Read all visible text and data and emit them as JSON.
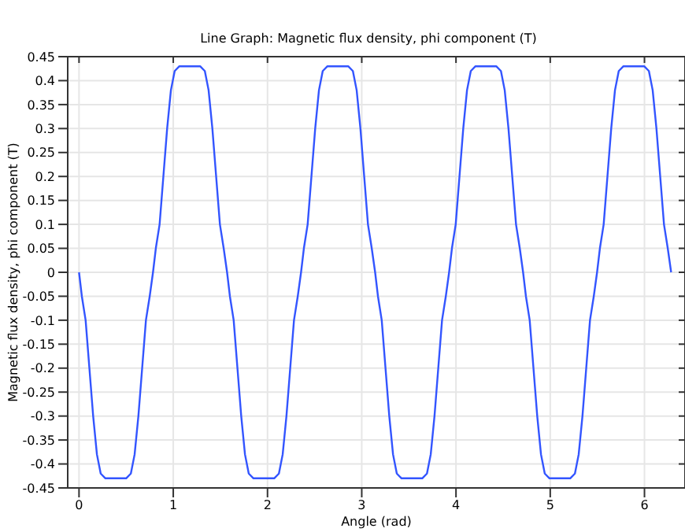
{
  "chart_data": {
    "type": "line",
    "title": "Line Graph: Magnetic flux density, phi component (T)",
    "xlabel": "Angle (rad)",
    "ylabel": "Magnetic flux density, phi component (T)",
    "xlim": [
      -0.12,
      6.43
    ],
    "xticks": [
      0,
      1,
      2,
      3,
      4,
      5,
      6
    ],
    "ylim": [
      -0.45,
      0.45
    ],
    "yticks": [
      -0.45,
      -0.4,
      -0.35,
      -0.3,
      -0.25,
      -0.2,
      -0.15,
      -0.1,
      -0.05,
      0,
      0.05,
      0.1,
      0.15,
      0.2,
      0.25,
      0.3,
      0.35,
      0.4,
      0.45
    ],
    "grid": true,
    "line_style": "solid",
    "x": [
      0,
      0.03,
      0.07,
      0.11,
      0.15,
      0.19,
      0.23,
      0.28,
      0.5,
      0.55,
      0.59,
      0.63,
      0.67,
      0.71,
      0.75,
      0.785,
      0.815,
      0.855,
      0.895,
      0.935,
      0.975,
      1.015,
      1.065,
      1.285,
      1.335,
      1.375,
      1.415,
      1.455,
      1.495,
      1.535,
      1.571,
      1.601,
      1.641,
      1.681,
      1.721,
      1.761,
      1.801,
      1.851,
      2.071,
      2.121,
      2.161,
      2.201,
      2.241,
      2.281,
      2.321,
      2.356,
      2.386,
      2.426,
      2.466,
      2.506,
      2.546,
      2.586,
      2.636,
      2.856,
      2.906,
      2.946,
      2.986,
      3.026,
      3.066,
      3.106,
      3.142,
      3.172,
      3.212,
      3.252,
      3.292,
      3.332,
      3.372,
      3.422,
      3.642,
      3.692,
      3.732,
      3.772,
      3.812,
      3.852,
      3.892,
      3.927,
      3.957,
      3.997,
      4.037,
      4.077,
      4.117,
      4.157,
      4.207,
      4.427,
      4.477,
      4.517,
      4.557,
      4.597,
      4.637,
      4.677,
      4.712,
      4.742,
      4.782,
      4.822,
      4.862,
      4.902,
      4.942,
      4.992,
      5.212,
      5.262,
      5.302,
      5.342,
      5.382,
      5.422,
      5.462,
      5.497,
      5.527,
      5.567,
      5.607,
      5.647,
      5.687,
      5.727,
      5.777,
      5.997,
      6.047,
      6.087,
      6.127,
      6.167,
      6.207,
      6.247,
      6.283
    ],
    "series": [
      {
        "color": "#3355ff",
        "values": [
          0,
          -0.05,
          -0.1,
          -0.2,
          -0.3,
          -0.38,
          -0.42,
          -0.43,
          -0.43,
          -0.42,
          -0.38,
          -0.3,
          -0.2,
          -0.1,
          -0.05,
          0,
          0.05,
          0.1,
          0.2,
          0.3,
          0.38,
          0.42,
          0.43,
          0.43,
          0.42,
          0.38,
          0.3,
          0.2,
          0.1,
          0.05,
          0,
          -0.05,
          -0.1,
          -0.2,
          -0.3,
          -0.38,
          -0.42,
          -0.43,
          -0.43,
          -0.42,
          -0.38,
          -0.3,
          -0.2,
          -0.1,
          -0.05,
          0,
          0.05,
          0.1,
          0.2,
          0.3,
          0.38,
          0.42,
          0.43,
          0.43,
          0.42,
          0.38,
          0.3,
          0.2,
          0.1,
          0.05,
          0,
          -0.05,
          -0.1,
          -0.2,
          -0.3,
          -0.38,
          -0.42,
          -0.43,
          -0.43,
          -0.42,
          -0.38,
          -0.3,
          -0.2,
          -0.1,
          -0.05,
          0,
          0.05,
          0.1,
          0.2,
          0.3,
          0.38,
          0.42,
          0.43,
          0.43,
          0.42,
          0.38,
          0.3,
          0.2,
          0.1,
          0.05,
          0,
          -0.05,
          -0.1,
          -0.2,
          -0.3,
          -0.38,
          -0.42,
          -0.43,
          -0.43,
          -0.42,
          -0.38,
          -0.3,
          -0.2,
          -0.1,
          -0.05,
          0,
          0.05,
          0.1,
          0.2,
          0.3,
          0.38,
          0.42,
          0.43,
          0.43,
          0.42,
          0.38,
          0.3,
          0.2,
          0.1,
          0.05,
          0
        ]
      }
    ]
  }
}
